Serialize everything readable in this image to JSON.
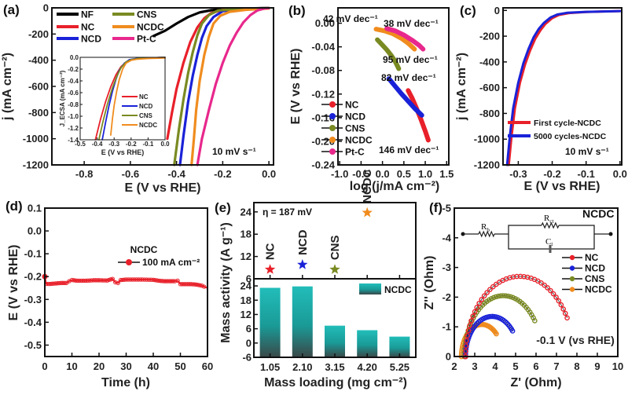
{
  "figure": {
    "panels": [
      "(a)",
      "(b)",
      "(c)",
      "(d)",
      "(e)",
      "(f)"
    ]
  },
  "chart_data": [
    {
      "id": "a",
      "panel_label": "(a)",
      "type": "line",
      "title": "",
      "xlabel": "E (V vs RHE)",
      "ylabel": "j (mA cm⁻²)",
      "xlim": [
        -0.94,
        0.02
      ],
      "ylim": [
        -1200,
        0
      ],
      "xticks": [
        -0.8,
        -0.6,
        -0.4,
        -0.2,
        0.0
      ],
      "xtick_labels": [
        "-0.8",
        "-0.6",
        "-0.4",
        "-0.2",
        "0.0"
      ],
      "yticks": [
        0,
        -200,
        -400,
        -600,
        -800,
        -1000,
        -1200
      ],
      "ytick_labels": [
        "0",
        "-200",
        "-400",
        "-600",
        "-800",
        "-1000",
        "-1200"
      ],
      "annotation": "10 mV s⁻¹",
      "legend_position": "top-left",
      "series": [
        {
          "name": "NF",
          "color": "#000000",
          "x": [
            -0.5,
            -0.45,
            -0.4,
            -0.35,
            -0.3,
            -0.25,
            -0.2,
            -0.15,
            -0.1,
            0.0
          ],
          "y": [
            -215,
            -175,
            -120,
            -70,
            -35,
            -18,
            -10,
            -6,
            -4,
            -2
          ]
        },
        {
          "name": "NC",
          "color": "#e8202a",
          "x": [
            -0.44,
            -0.42,
            -0.4,
            -0.37,
            -0.34,
            -0.31,
            -0.28,
            -0.25,
            -0.2,
            -0.1,
            0.0
          ],
          "y": [
            -1000,
            -800,
            -620,
            -420,
            -260,
            -150,
            -80,
            -40,
            -15,
            -5,
            -2
          ]
        },
        {
          "name": "NCD",
          "color": "#1a22d8",
          "x": [
            -0.385,
            -0.37,
            -0.35,
            -0.33,
            -0.31,
            -0.29,
            -0.27,
            -0.24,
            -0.2,
            -0.1,
            0.0
          ],
          "y": [
            -1200,
            -980,
            -720,
            -520,
            -360,
            -230,
            -140,
            -70,
            -25,
            -5,
            -2
          ]
        },
        {
          "name": "CNS",
          "color": "#7a8a22",
          "x": [
            -0.41,
            -0.39,
            -0.37,
            -0.35,
            -0.33,
            -0.31,
            -0.29,
            -0.26,
            -0.22,
            -0.1,
            0.0
          ],
          "y": [
            -1200,
            -930,
            -700,
            -500,
            -340,
            -210,
            -120,
            -55,
            -20,
            -5,
            -2
          ]
        },
        {
          "name": "NCDC",
          "color": "#f08c1e",
          "x": [
            -0.335,
            -0.325,
            -0.315,
            -0.3,
            -0.28,
            -0.26,
            -0.24,
            -0.21,
            -0.17,
            -0.1,
            0.0
          ],
          "y": [
            -1200,
            -1000,
            -780,
            -560,
            -360,
            -220,
            -120,
            -60,
            -30,
            -15,
            -5
          ]
        },
        {
          "name": "Pt-C",
          "color": "#e8288c",
          "x": [
            -0.31,
            -0.29,
            -0.26,
            -0.23,
            -0.2,
            -0.17,
            -0.14,
            -0.11,
            -0.08,
            -0.05,
            -0.02,
            0.0
          ],
          "y": [
            -1200,
            -1000,
            -780,
            -580,
            -420,
            -290,
            -190,
            -110,
            -55,
            -20,
            -5,
            -2
          ]
        }
      ],
      "inset": {
        "type": "line",
        "xlabel": "E (V vs RHE)",
        "ylabel": "J_ECSA (mA cm⁻²)",
        "xlim": [
          -0.5,
          0.0
        ],
        "ylim": [
          -1.4,
          0.0
        ],
        "xticks": [
          -0.5,
          -0.4,
          -0.3,
          -0.2,
          -0.1,
          0.0
        ],
        "xtick_labels": [
          "-0.5",
          "-0.4",
          "-0.3",
          "-0.2",
          "-0.1",
          "0.0"
        ],
        "yticks": [
          0.0,
          -0.2,
          -0.4,
          -0.6,
          -0.8,
          -1.0,
          -1.2,
          -1.4
        ],
        "ytick_labels": [
          "0.0",
          "-0.2",
          "-0.4",
          "-0.6",
          "-0.8",
          "-1.0",
          "-1.2",
          "-1.4"
        ],
        "series": [
          {
            "name": "NC",
            "color": "#e8202a",
            "x": [
              -0.41,
              -0.38,
              -0.35,
              -0.32,
              -0.29,
              -0.26,
              -0.23,
              -0.2,
              -0.15,
              -0.1,
              0.0
            ],
            "y": [
              -1.4,
              -1.05,
              -0.75,
              -0.5,
              -0.3,
              -0.16,
              -0.08,
              -0.04,
              -0.02,
              -0.01,
              0.0
            ]
          },
          {
            "name": "NCD",
            "color": "#1a22d8",
            "x": [
              -0.37,
              -0.35,
              -0.33,
              -0.31,
              -0.29,
              -0.27,
              -0.24,
              -0.21,
              -0.17,
              -0.1,
              0.0
            ],
            "y": [
              -1.4,
              -1.1,
              -0.82,
              -0.58,
              -0.38,
              -0.22,
              -0.1,
              -0.04,
              -0.02,
              -0.01,
              0.0
            ]
          },
          {
            "name": "CNS",
            "color": "#7a8a22",
            "x": [
              -0.39,
              -0.365,
              -0.34,
              -0.31,
              -0.285,
              -0.26,
              -0.23,
              -0.2,
              -0.16,
              -0.1,
              0.0
            ],
            "y": [
              -1.4,
              -1.08,
              -0.8,
              -0.52,
              -0.33,
              -0.18,
              -0.08,
              -0.04,
              -0.02,
              -0.01,
              0.0
            ]
          },
          {
            "name": "NCDC",
            "color": "#f08c1e",
            "x": [
              -0.32,
              -0.31,
              -0.3,
              -0.285,
              -0.27,
              -0.25,
              -0.23,
              -0.2,
              -0.16,
              -0.1,
              0.0
            ],
            "y": [
              -1.32,
              -1.05,
              -0.82,
              -0.58,
              -0.38,
              -0.2,
              -0.1,
              -0.05,
              -0.03,
              -0.02,
              -0.01
            ]
          }
        ]
      }
    },
    {
      "id": "b",
      "panel_label": "(b)",
      "type": "line",
      "xlabel": "log (j/mA cm⁻²)",
      "ylabel": "E (V vs RHE)",
      "xlim": [
        -1.0,
        1.5
      ],
      "ylim": [
        -0.24,
        0.0
      ],
      "xticks": [
        -1.0,
        -0.5,
        0.0,
        0.5,
        1.0,
        1.5
      ],
      "xtick_labels": [
        "-1.0",
        "-0.5",
        "0.0",
        "0.5",
        "1.0",
        "1.5"
      ],
      "yticks": [
        0.0,
        -0.04,
        -0.08,
        -0.12,
        -0.16,
        -0.2,
        -0.24
      ],
      "ytick_labels": [
        "0.00",
        "-0.04",
        "-0.08",
        "-0.12",
        "-0.16",
        "-0.20",
        "-0.24"
      ],
      "legend_position": "bottom-left",
      "series": [
        {
          "name": "NC",
          "color": "#e8202a",
          "x": [
            0.6,
            0.7,
            0.8,
            0.9,
            1.0,
            1.07
          ],
          "y": [
            -0.114,
            -0.128,
            -0.145,
            -0.163,
            -0.183,
            -0.198
          ],
          "tafel_slope": "146 mV dec⁻¹"
        },
        {
          "name": "NCD",
          "color": "#1a22d8",
          "x": [
            0.15,
            0.3,
            0.45,
            0.6,
            0.75,
            0.92
          ],
          "y": [
            -0.094,
            -0.107,
            -0.12,
            -0.132,
            -0.144,
            -0.156
          ],
          "tafel_slope": "82 mV dec⁻¹"
        },
        {
          "name": "CNS",
          "color": "#7a8a22",
          "x": [
            -0.12,
            0.0,
            0.1,
            0.2,
            0.3,
            0.38
          ],
          "y": [
            -0.028,
            -0.037,
            -0.045,
            -0.054,
            -0.065,
            -0.077
          ],
          "tafel_slope": "95 mV dec⁻¹"
        },
        {
          "name": "NCDC",
          "color": "#f08c1e",
          "x": [
            -0.15,
            0.05,
            0.25,
            0.45,
            0.6,
            0.75
          ],
          "y": [
            -0.01,
            -0.013,
            -0.018,
            -0.026,
            -0.034,
            -0.044
          ],
          "tafel_slope": "42 mV dec⁻¹"
        },
        {
          "name": "Pt-C",
          "color": "#e8288c",
          "x": [
            0.1,
            0.3,
            0.5,
            0.7,
            0.85,
            0.95
          ],
          "y": [
            -0.009,
            -0.013,
            -0.02,
            -0.029,
            -0.037,
            -0.044
          ],
          "tafel_slope": "38 mV dec⁻¹"
        }
      ],
      "annotations": [
        {
          "text": "42 mV dec⁻¹",
          "color": "#f08c1e"
        },
        {
          "text": "38 mV dec⁻¹",
          "color": "#e8288c"
        },
        {
          "text": "95 mV dec⁻¹",
          "color": "#7a8a22"
        },
        {
          "text": "82 mV dec⁻¹",
          "color": "#1a22d8"
        },
        {
          "text": "146 mV dec⁻¹",
          "color": "#e8202a"
        }
      ]
    },
    {
      "id": "c",
      "panel_label": "(c)",
      "type": "line",
      "xlabel": "E (V vs RHE)",
      "ylabel": "j (mA cm⁻²)",
      "xlim": [
        -0.345,
        0.0
      ],
      "ylim": [
        -1200,
        0
      ],
      "xticks": [
        -0.3,
        -0.2,
        -0.1,
        0.0
      ],
      "xtick_labels": [
        "-0.3",
        "-0.2",
        "-0.1",
        "0.0"
      ],
      "yticks": [
        0,
        -200,
        -400,
        -600,
        -800,
        -1000,
        -1200
      ],
      "ytick_labels": [
        "0",
        "-200",
        "-400",
        "-600",
        "-800",
        "-1000",
        "-1200"
      ],
      "annotation": "10 mV s⁻¹",
      "legend_position": "bottom-right",
      "series": [
        {
          "name": "First cycle-NCDC",
          "color": "#e8202a",
          "x": [
            -0.328,
            -0.32,
            -0.31,
            -0.295,
            -0.28,
            -0.265,
            -0.25,
            -0.235,
            -0.22,
            -0.2,
            -0.18,
            -0.15,
            -0.1,
            -0.05,
            0.0
          ],
          "y": [
            -1200,
            -980,
            -760,
            -560,
            -420,
            -310,
            -220,
            -155,
            -105,
            -60,
            -35,
            -20,
            -12,
            -8,
            -5
          ]
        },
        {
          "name": "5000 cycles-NCDC",
          "color": "#1a22d8",
          "x": [
            -0.333,
            -0.325,
            -0.315,
            -0.3,
            -0.285,
            -0.27,
            -0.255,
            -0.24,
            -0.225,
            -0.205,
            -0.185,
            -0.155,
            -0.1,
            -0.05,
            0.0
          ],
          "y": [
            -1200,
            -980,
            -760,
            -560,
            -410,
            -300,
            -210,
            -145,
            -98,
            -55,
            -32,
            -18,
            -11,
            -8,
            -5
          ]
        }
      ]
    },
    {
      "id": "d",
      "panel_label": "(d)",
      "type": "line",
      "xlabel": "Time (h)",
      "ylabel": "E (V vs RHE)",
      "xlim": [
        0,
        60
      ],
      "ylim": [
        -0.55,
        0.1
      ],
      "xticks": [
        0,
        10,
        20,
        30,
        40,
        50,
        60
      ],
      "xtick_labels": [
        "0",
        "10",
        "20",
        "30",
        "40",
        "50",
        "60"
      ],
      "yticks": [
        0.1,
        0.0,
        -0.1,
        -0.2,
        -0.3,
        -0.4,
        -0.5
      ],
      "ytick_labels": [
        "0.1",
        "0.0",
        "-0.1",
        "-0.2",
        "-0.3",
        "-0.4",
        "-0.5"
      ],
      "legend_title": "NCDC",
      "series": [
        {
          "name": "100 mA cm⁻²",
          "color": "#e8202a",
          "x": [
            0,
            0.5,
            2,
            4,
            6,
            8,
            9,
            10,
            12,
            15,
            18,
            20,
            23,
            25,
            26,
            27,
            28,
            30,
            33,
            36,
            40,
            42,
            44,
            46,
            48,
            49,
            50,
            52,
            54,
            56,
            58,
            59.5
          ],
          "y": [
            -0.2,
            -0.232,
            -0.232,
            -0.23,
            -0.228,
            -0.228,
            -0.22,
            -0.215,
            -0.218,
            -0.218,
            -0.216,
            -0.216,
            -0.217,
            -0.21,
            -0.225,
            -0.228,
            -0.215,
            -0.213,
            -0.213,
            -0.213,
            -0.214,
            -0.218,
            -0.22,
            -0.22,
            -0.22,
            -0.218,
            -0.233,
            -0.233,
            -0.233,
            -0.235,
            -0.24,
            -0.248
          ]
        }
      ]
    },
    {
      "id": "e_top",
      "panel_label": "(e)",
      "type": "scatter",
      "ylabel": "Mass activity (A g⁻¹)",
      "ylim": [
        6,
        26
      ],
      "yticks": [
        6,
        12,
        18,
        24
      ],
      "ytick_labels": [
        "6",
        "12",
        "18",
        "24"
      ],
      "annotation": "η = 187 mV",
      "points": [
        {
          "name": "NC",
          "value": 8.5,
          "color": "#e8202a"
        },
        {
          "name": "NCD",
          "value": 9.8,
          "color": "#1a22d8"
        },
        {
          "name": "CNS",
          "value": 8.5,
          "color": "#7a8a22"
        },
        {
          "name": "NCDC",
          "value": 23.8,
          "color": "#f08c1e"
        }
      ]
    },
    {
      "id": "e_bottom",
      "type": "bar",
      "xlabel": "Mass loading (mg cm⁻²)",
      "ylabel": "Mass activity (A g⁻¹)",
      "ylim": [
        -6,
        27
      ],
      "yticks": [
        -6,
        0,
        6,
        12,
        18,
        24
      ],
      "ytick_labels": [
        "-6",
        "0",
        "6",
        "12",
        "18",
        "24"
      ],
      "categories": [
        "1.05",
        "2.10",
        "3.15",
        "4.20",
        "5.25"
      ],
      "series": [
        {
          "name": "NCDC",
          "values": [
            23.2,
            23.8,
            7.3,
            5.4,
            2.7
          ],
          "color": "#1fb3b0"
        }
      ],
      "legend_position": "top-right"
    },
    {
      "id": "f",
      "panel_label": "(f)",
      "type": "scatter",
      "xlabel": "Z' (Ohm)",
      "ylabel": "Z'' (Ohm)",
      "xlim": [
        2,
        10
      ],
      "ylim": [
        0,
        -5
      ],
      "xticks": [
        2,
        3,
        4,
        5,
        6,
        7,
        8,
        9,
        10
      ],
      "xtick_labels": [
        "2",
        "3",
        "4",
        "5",
        "6",
        "7",
        "8",
        "9",
        "10"
      ],
      "yticks": [
        0,
        -1,
        -2,
        -3,
        -4,
        -5
      ],
      "ytick_labels": [
        "0",
        "-1",
        "-2",
        "-3",
        "-4",
        "-5"
      ],
      "annotation": "-0.1 V (vs RHE)",
      "circuit_title": "NCDC",
      "circuit_labels": {
        "r_b": "R",
        "r_b_sub": "b",
        "r_ct": "R",
        "r_ct_sub": "ct",
        "c": "C",
        "c_sub": "t"
      },
      "legend_position": "right",
      "series": [
        {
          "name": "NC",
          "color": "#e8202a",
          "center": 5.2,
          "r_x": 2.65,
          "r_y": 2.7,
          "start": 2.55,
          "end_angle_frac": 0.84
        },
        {
          "name": "NCD",
          "color": "#1a22d8",
          "center": 3.85,
          "r_x": 1.3,
          "r_y": 1.35,
          "start": 2.55,
          "end_angle_frac": 0.78
        },
        {
          "name": "CNS",
          "color": "#7a8a22",
          "center": 4.4,
          "r_x": 1.9,
          "r_y": 2.05,
          "start": 2.5,
          "end_angle_frac": 0.8
        },
        {
          "name": "NCDC",
          "color": "#f08c1e",
          "center": 3.35,
          "r_x": 1.0,
          "r_y": 1.08,
          "start": 2.35,
          "end_angle_frac": 0.75
        }
      ]
    }
  ]
}
